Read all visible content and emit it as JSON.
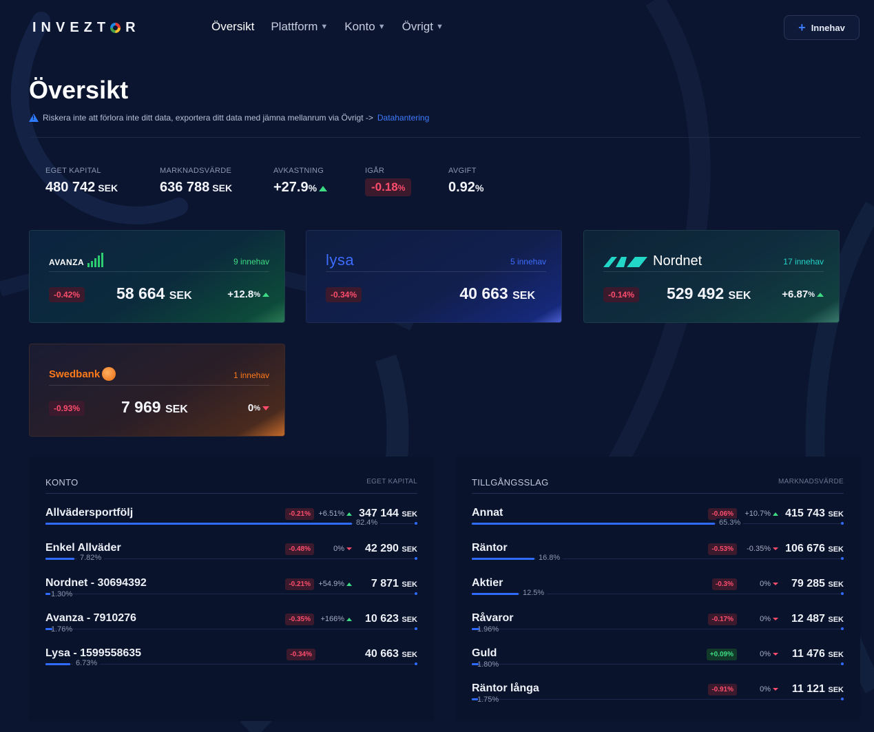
{
  "brand": {
    "logo_left": "INVEZT",
    "logo_right": "R"
  },
  "nav": [
    {
      "label": "Översikt",
      "active": true
    },
    {
      "label": "Plattform"
    },
    {
      "label": "Konto"
    },
    {
      "label": "Övrigt"
    }
  ],
  "header_button": {
    "label": "Innehav"
  },
  "page": {
    "title": "Översikt",
    "notice_text": "Riskera inte att förlora inte ditt data, exportera ditt data med jämna mellanrum via Övrigt ->",
    "notice_link": "Datahantering"
  },
  "stats": {
    "eget_kapital": {
      "label": "EGET KAPITAL",
      "value": "480 742",
      "unit": "SEK"
    },
    "marknadsvarde": {
      "label": "MARKNADSVÄRDE",
      "value": "636 788",
      "unit": "SEK"
    },
    "avkastning": {
      "label": "AVKASTNING",
      "value": "+27.9",
      "unit": "%"
    },
    "igar": {
      "label": "IGÅR",
      "value": "-0.18",
      "unit": "%"
    },
    "avgift": {
      "label": "AVGIFT",
      "value": "0.92",
      "unit": "%"
    }
  },
  "platforms": {
    "avanza": {
      "brand": "AVANZA",
      "count": "9 innehav",
      "change": "-0.42%",
      "value": "58 664",
      "unit": "SEK",
      "return": "+12.8",
      "return_unit": "%"
    },
    "lysa": {
      "brand": "lysa",
      "count": "5 innehav",
      "change": "-0.34%",
      "value": "40 663",
      "unit": "SEK"
    },
    "nordnet": {
      "brand": "Nordnet",
      "count": "17 innehav",
      "change": "-0.14%",
      "value": "529 492",
      "unit": "SEK",
      "return": "+6.87",
      "return_unit": "%"
    },
    "swedbank": {
      "brand": "Swedbank",
      "count": "1 innehav",
      "change": "-0.93%",
      "value": "7 969",
      "unit": "SEK",
      "return": "0",
      "return_unit": "%"
    }
  },
  "konto": {
    "title": "KONTO",
    "subtitle": "EGET KAPITAL",
    "rows": [
      {
        "name": "Allvädersportfölj",
        "change": "-0.21%",
        "ret": "+6.51%",
        "value": "347 144",
        "unit": "SEK",
        "pct": "82.4%",
        "share": 0.824
      },
      {
        "name": "Enkel Allväder",
        "change": "-0.48%",
        "ret": "0%",
        "value": "42 290",
        "unit": "SEK",
        "pct": "7.82%",
        "share": 0.0782
      },
      {
        "name": "Nordnet - 30694392",
        "change": "-0.21%",
        "ret": "+54.9%",
        "value": "7 871",
        "unit": "SEK",
        "pct": "1.30%",
        "share": 0.013
      },
      {
        "name": "Avanza - 7910276",
        "change": "-0.35%",
        "ret": "+166%",
        "value": "10 623",
        "unit": "SEK",
        "pct": "1.76%",
        "share": 0.0176
      },
      {
        "name": "Lysa - 1599558635",
        "change": "-0.34%",
        "value": "40 663",
        "unit": "SEK",
        "pct": "6.73%",
        "share": 0.0673
      }
    ]
  },
  "tillgang": {
    "title": "TILLGÅNGSSLAG",
    "subtitle": "MARKNADSVÄRDE",
    "rows": [
      {
        "name": "Annat",
        "change": "-0.06%",
        "ret": "+10.7%",
        "value": "415 743",
        "unit": "SEK",
        "pct": "65.3%",
        "share": 0.653
      },
      {
        "name": "Räntor",
        "change": "-0.53%",
        "ret": "-0.35%",
        "value": "106 676",
        "unit": "SEK",
        "pct": "16.8%",
        "share": 0.168
      },
      {
        "name": "Aktier",
        "change": "-0.3%",
        "ret": "0%",
        "value": "79 285",
        "unit": "SEK",
        "pct": "12.5%",
        "share": 0.125
      },
      {
        "name": "Råvaror",
        "change": "-0.17%",
        "ret": "0%",
        "value": "12 487",
        "unit": "SEK",
        "pct": "1.96%",
        "share": 0.0196
      },
      {
        "name": "Guld",
        "change": "+0.09%",
        "ret": "0%",
        "value": "11 476",
        "unit": "SEK",
        "pct": "1.80%",
        "share": 0.018
      },
      {
        "name": "Räntor långa",
        "change": "-0.91%",
        "ret": "0%",
        "value": "11 121",
        "unit": "SEK",
        "pct": "1.75%",
        "share": 0.0175
      }
    ]
  },
  "colors": {
    "accent": "#2f6bff",
    "negative": "#ff4d6d",
    "positive": "#3ddc84",
    "background": "#0b1530"
  }
}
